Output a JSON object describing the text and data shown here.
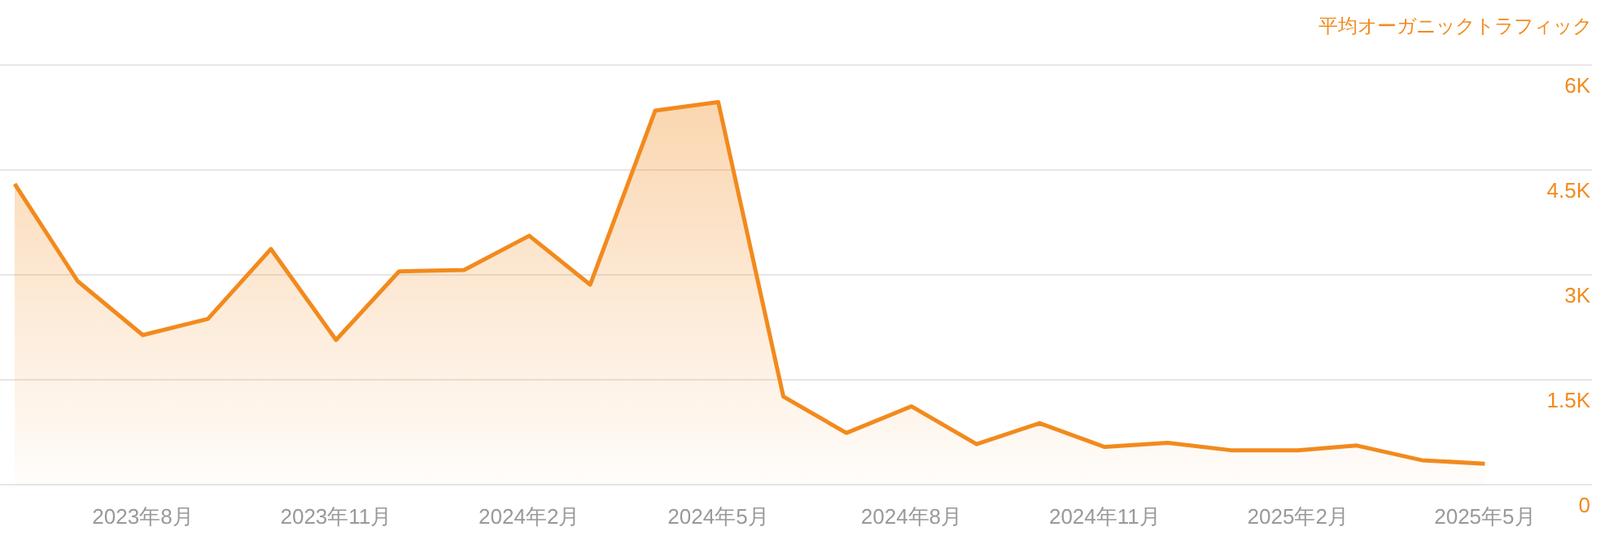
{
  "chart_data": {
    "type": "area",
    "ylabel": "平均オーガニックトラフィック",
    "x": [
      "2023-06",
      "2023-07",
      "2023-08",
      "2023-09",
      "2023-10",
      "2023-11",
      "2023-12",
      "2024-01",
      "2024-02",
      "2024-03",
      "2024-04",
      "2024-05",
      "2024-06",
      "2024-07",
      "2024-08",
      "2024-09",
      "2024-10",
      "2024-11",
      "2024-12",
      "2025-01",
      "2025-02",
      "2025-03",
      "2025-04",
      "2025-05"
    ],
    "series": [
      {
        "color": "#f28a1d",
        "values": [
          4300,
          2910,
          2140,
          2370,
          3370,
          2070,
          3050,
          3070,
          3560,
          2860,
          5350,
          5470,
          1260,
          740,
          1120,
          580,
          880,
          540,
          600,
          490,
          490,
          560,
          350,
          300
        ]
      }
    ],
    "xlim": [
      "2023-05-25",
      "2025-06-21"
    ],
    "xticks": [
      {
        "value": "2023-08",
        "label": "2023年8月"
      },
      {
        "value": "2023-11",
        "label": "2023年11月"
      },
      {
        "value": "2024-02",
        "label": "2024年2月"
      },
      {
        "value": "2024-05",
        "label": "2024年5月"
      },
      {
        "value": "2024-08",
        "label": "2024年8月"
      },
      {
        "value": "2024-11",
        "label": "2024年11月"
      },
      {
        "value": "2025-02",
        "label": "2025年2月"
      },
      {
        "value": "2025-05",
        "label": "2025年5月"
      }
    ],
    "ylim": [
      0,
      6000
    ],
    "yticks": [
      {
        "value": 0,
        "label": "0"
      },
      {
        "value": 1500,
        "label": "1.5K"
      },
      {
        "value": 3000,
        "label": "3K"
      },
      {
        "value": 4500,
        "label": "4.5K"
      },
      {
        "value": 6000,
        "label": "6K"
      }
    ],
    "grid": "y",
    "marker": "none",
    "line_style": "solid"
  }
}
